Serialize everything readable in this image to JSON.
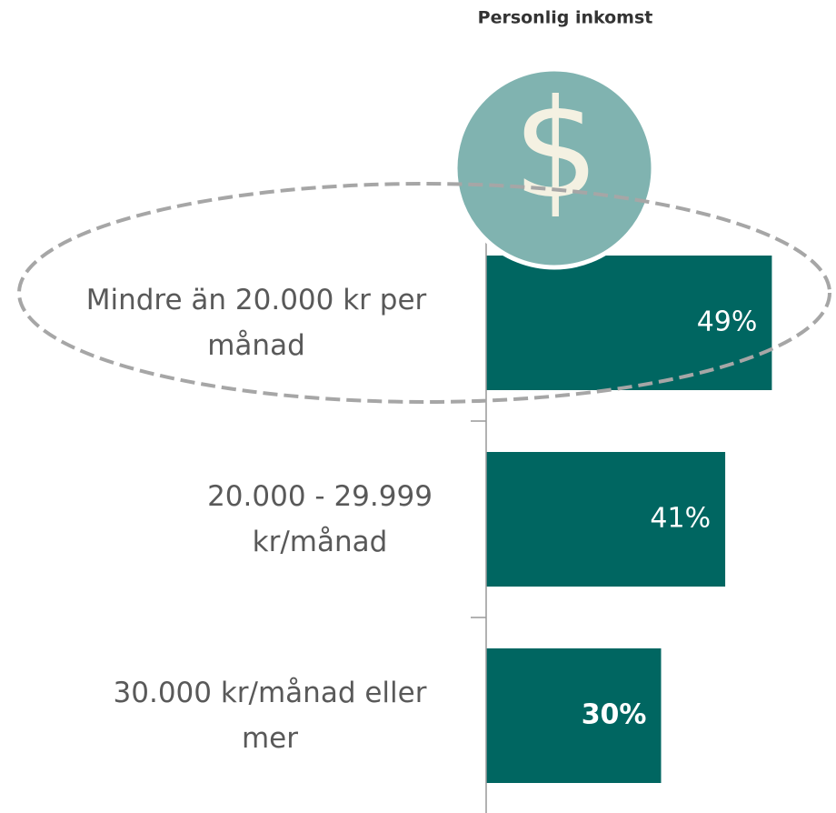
{
  "chart_data": {
    "type": "bar",
    "orientation": "horizontal",
    "title": "Personlig inkomst",
    "categories": [
      "Mindre än 20.000 kr per månad",
      "20.000 - 29.999 kr/månad",
      "30.000 kr/månad eller mer"
    ],
    "values": [
      49,
      41,
      30
    ],
    "value_labels": [
      "49%",
      "41%",
      "30%"
    ],
    "color": "#006661",
    "xlim": [
      0,
      60
    ]
  }
}
